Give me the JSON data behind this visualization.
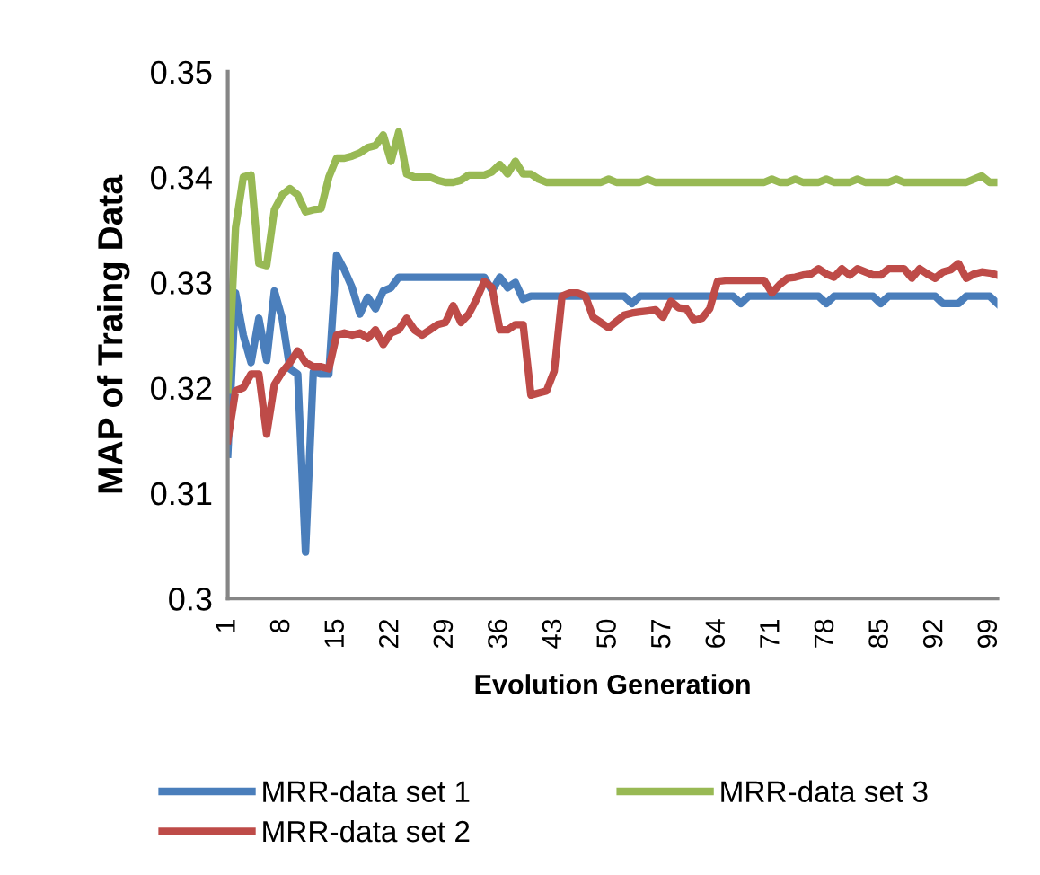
{
  "chart_data": {
    "type": "line",
    "xlabel": "Evolution Generation",
    "ylabel": "MAP of Traing Data",
    "categories": [
      "1",
      null,
      null,
      null,
      null,
      null,
      null,
      "8",
      null,
      null,
      null,
      null,
      null,
      null,
      "15",
      null,
      null,
      null,
      null,
      null,
      null,
      "22",
      null,
      null,
      null,
      null,
      null,
      null,
      "29",
      null,
      null,
      null,
      null,
      null,
      null,
      "36",
      null,
      null,
      null,
      null,
      null,
      null,
      "43",
      null,
      null,
      null,
      null,
      null,
      null,
      "50",
      null,
      null,
      null,
      null,
      null,
      null,
      "57",
      null,
      null,
      null,
      null,
      null,
      null,
      "64",
      null,
      null,
      null,
      null,
      null,
      null,
      "71",
      null,
      null,
      null,
      null,
      null,
      null,
      "78",
      null,
      null,
      null,
      null,
      null,
      null,
      "85",
      null,
      null,
      null,
      null,
      null,
      null,
      "92",
      null,
      null,
      null,
      null,
      null,
      null,
      "99",
      null
    ],
    "series": [
      {
        "name": "MRR-data set 1",
        "color": "#4a7ebb",
        "values": [
          0.3137,
          0.329,
          0.325,
          0.3224,
          0.3266,
          0.3226,
          0.3292,
          0.3266,
          0.3218,
          0.3213,
          0.3044,
          0.3215,
          0.3213,
          0.3213,
          0.3326,
          0.3312,
          0.3295,
          0.327,
          0.3286,
          0.3275,
          0.3292,
          0.3295,
          0.3305,
          0.3305,
          0.3305,
          0.3305,
          0.3305,
          0.3305,
          0.3305,
          0.3305,
          0.3305,
          0.3305,
          0.3305,
          0.3305,
          0.3292,
          0.3305,
          0.3295,
          0.33,
          0.3284,
          0.3287,
          0.3287,
          0.3287,
          0.3287,
          0.3287,
          0.3287,
          0.3287,
          0.3287,
          0.3287,
          0.3287,
          0.3287,
          0.3287,
          0.3287,
          0.328,
          0.3287,
          0.3287,
          0.3287,
          0.3287,
          0.3287,
          0.3287,
          0.3287,
          0.3287,
          0.3287,
          0.3287,
          0.3287,
          0.3287,
          0.3287,
          0.328,
          0.3287,
          0.3287,
          0.3287,
          0.3287,
          0.3287,
          0.3287,
          0.3287,
          0.3287,
          0.3287,
          0.3287,
          0.328,
          0.3287,
          0.3287,
          0.3287,
          0.3287,
          0.3287,
          0.3287,
          0.328,
          0.3287,
          0.3287,
          0.3287,
          0.3287,
          0.3287,
          0.3287,
          0.3287,
          0.328,
          0.328,
          0.328,
          0.3287,
          0.3287,
          0.3287,
          0.3287,
          0.328
        ]
      },
      {
        "name": "MRR-data set 2",
        "color": "#be4b48",
        "values": [
          0.315,
          0.3197,
          0.32,
          0.3213,
          0.3213,
          0.3156,
          0.3203,
          0.3215,
          0.3224,
          0.3235,
          0.3224,
          0.322,
          0.322,
          0.3218,
          0.325,
          0.3252,
          0.325,
          0.3252,
          0.3247,
          0.3255,
          0.3241,
          0.3252,
          0.3255,
          0.3266,
          0.3255,
          0.325,
          0.3255,
          0.326,
          0.3262,
          0.3278,
          0.3262,
          0.327,
          0.3284,
          0.3301,
          0.3295,
          0.3255,
          0.3255,
          0.326,
          0.326,
          0.3193,
          0.3195,
          0.3197,
          0.3216,
          0.3287,
          0.329,
          0.329,
          0.3287,
          0.3267,
          0.3262,
          0.3257,
          0.3263,
          0.3269,
          0.3271,
          0.3272,
          0.3273,
          0.3274,
          0.3267,
          0.3282,
          0.3276,
          0.3275,
          0.3264,
          0.3266,
          0.3275,
          0.3301,
          0.3302,
          0.3302,
          0.3302,
          0.3302,
          0.3302,
          0.3302,
          0.329,
          0.3298,
          0.3304,
          0.3305,
          0.3307,
          0.3308,
          0.3313,
          0.3308,
          0.3305,
          0.3313,
          0.3307,
          0.3313,
          0.331,
          0.3307,
          0.3307,
          0.3313,
          0.3313,
          0.3313,
          0.3304,
          0.3313,
          0.3308,
          0.3304,
          0.331,
          0.3312,
          0.3318,
          0.3304,
          0.3308,
          0.331,
          0.3309,
          0.3307
        ]
      },
      {
        "name": "MRR-data set 3",
        "color": "#98b954",
        "values": [
          0.3198,
          0.3352,
          0.34,
          0.3402,
          0.3318,
          0.3316,
          0.3369,
          0.3383,
          0.3389,
          0.3383,
          0.3367,
          0.3369,
          0.337,
          0.34,
          0.3418,
          0.3418,
          0.342,
          0.3423,
          0.3428,
          0.343,
          0.344,
          0.3415,
          0.3443,
          0.3403,
          0.34,
          0.34,
          0.34,
          0.3397,
          0.3395,
          0.3395,
          0.3397,
          0.3402,
          0.3402,
          0.3402,
          0.3405,
          0.3412,
          0.3403,
          0.3415,
          0.3403,
          0.3403,
          0.3398,
          0.3395,
          0.3395,
          0.3395,
          0.3395,
          0.3395,
          0.3395,
          0.3395,
          0.3395,
          0.3398,
          0.3395,
          0.3395,
          0.3395,
          0.3395,
          0.3398,
          0.3395,
          0.3395,
          0.3395,
          0.3395,
          0.3395,
          0.3395,
          0.3395,
          0.3395,
          0.3395,
          0.3395,
          0.3395,
          0.3395,
          0.3395,
          0.3395,
          0.3395,
          0.3398,
          0.3395,
          0.3395,
          0.3398,
          0.3395,
          0.3395,
          0.3395,
          0.3398,
          0.3395,
          0.3395,
          0.3395,
          0.3398,
          0.3395,
          0.3395,
          0.3395,
          0.3395,
          0.3398,
          0.3395,
          0.3395,
          0.3395,
          0.3395,
          0.3395,
          0.3395,
          0.3395,
          0.3395,
          0.3395,
          0.3398,
          0.3401,
          0.3395,
          0.3395
        ]
      }
    ],
    "ylim": [
      0.3,
      0.35
    ],
    "yticks": [
      0.3,
      0.31,
      0.32,
      0.33,
      0.34,
      0.35
    ],
    "grid": false,
    "legend": "bottom",
    "marker": "none",
    "line_style": "solid"
  }
}
